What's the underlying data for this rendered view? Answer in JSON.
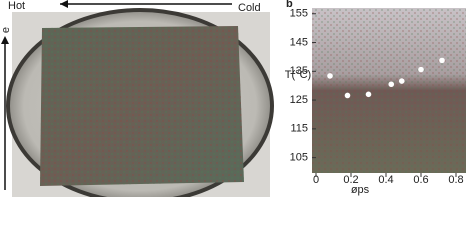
{
  "left_panel": {
    "hot_label": "Hot",
    "cold_label": "Cold",
    "side_label": "e"
  },
  "chart_data": {
    "type": "scatter",
    "panel_label": "b",
    "x_label": "øps",
    "y_label": "T(°C)",
    "x": [
      0.08,
      0.18,
      0.3,
      0.43,
      0.49,
      0.6,
      0.72
    ],
    "values": [
      133.4,
      126.6,
      127,
      130.5,
      131.6,
      135.6,
      138.8
    ],
    "color": "#ffffff",
    "xlim": [
      0,
      0.84
    ],
    "ylim": [
      100,
      157
    ],
    "xticks": [
      0,
      0.2,
      0.4,
      0.6,
      0.8
    ],
    "yticks": [
      105,
      115,
      125,
      135,
      145,
      155
    ]
  }
}
